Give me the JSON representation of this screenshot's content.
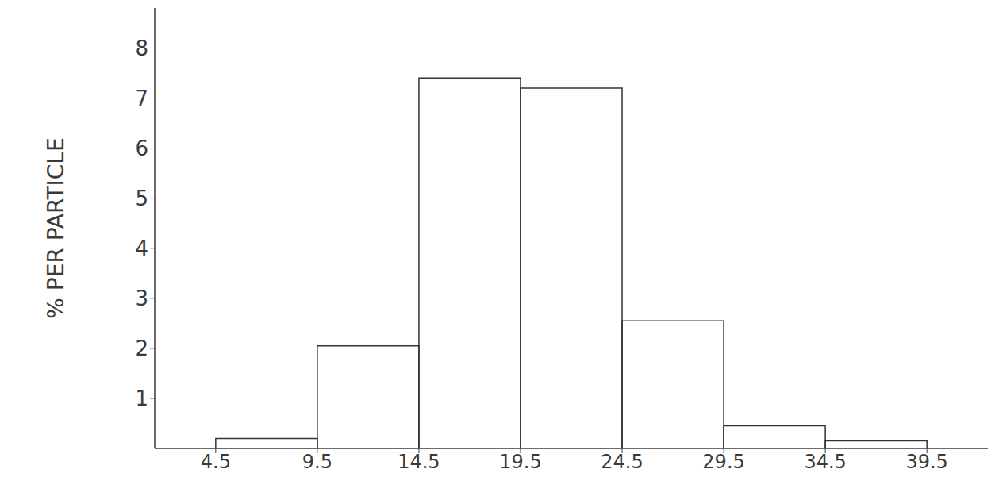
{
  "chart_data": {
    "type": "histogram",
    "y_label": "% PER PARTICLE",
    "bins": [
      4.5,
      9.5,
      14.5,
      19.5,
      24.5,
      29.5,
      34.5,
      39.5
    ],
    "values": [
      0.2,
      2.05,
      7.4,
      7.2,
      2.55,
      0.45,
      0.15
    ],
    "color": "#333333",
    "xlim": [
      1.5,
      42.5
    ],
    "xticks": [
      4.5,
      9.5,
      14.5,
      19.5,
      24.5,
      29.5,
      34.5,
      39.5
    ],
    "ylim": [
      0,
      8.8
    ],
    "yticks": [
      1,
      2,
      3,
      4,
      5,
      6,
      7,
      8
    ],
    "grid": false
  }
}
